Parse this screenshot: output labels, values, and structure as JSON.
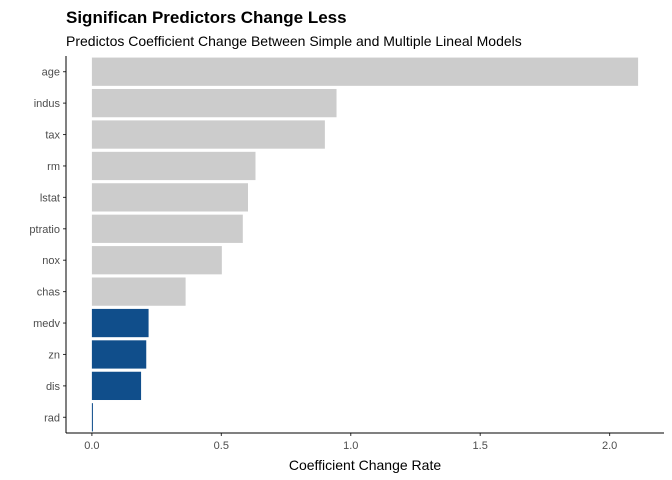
{
  "chart_data": {
    "type": "bar",
    "orientation": "horizontal",
    "title": "Significan Predictors Change Less",
    "subtitle": "Predictos Coefficient Change Between Simple and Multiple Lineal Models",
    "xlabel": "Coefficient Change Rate",
    "ylabel": "",
    "xlim": [
      -0.1,
      2.21
    ],
    "x_ticks": [
      0.0,
      0.5,
      1.0,
      1.5,
      2.0
    ],
    "x_tick_labels": [
      "0.0",
      "0.5",
      "1.0",
      "1.5",
      "2.0"
    ],
    "grid": false,
    "categories": [
      "age",
      "indus",
      "tax",
      "rm",
      "lstat",
      "ptratio",
      "nox",
      "chas",
      "medv",
      "zn",
      "dis",
      "rad"
    ],
    "values": [
      2.11,
      0.945,
      0.9,
      0.632,
      0.603,
      0.583,
      0.502,
      0.362,
      0.219,
      0.21,
      0.19,
      0.004
    ],
    "significant": [
      false,
      false,
      false,
      false,
      false,
      false,
      false,
      false,
      true,
      true,
      true,
      true
    ],
    "colors": {
      "not_significant": "#cccccc",
      "significant": "#104e8b",
      "axis": "#000000"
    }
  }
}
